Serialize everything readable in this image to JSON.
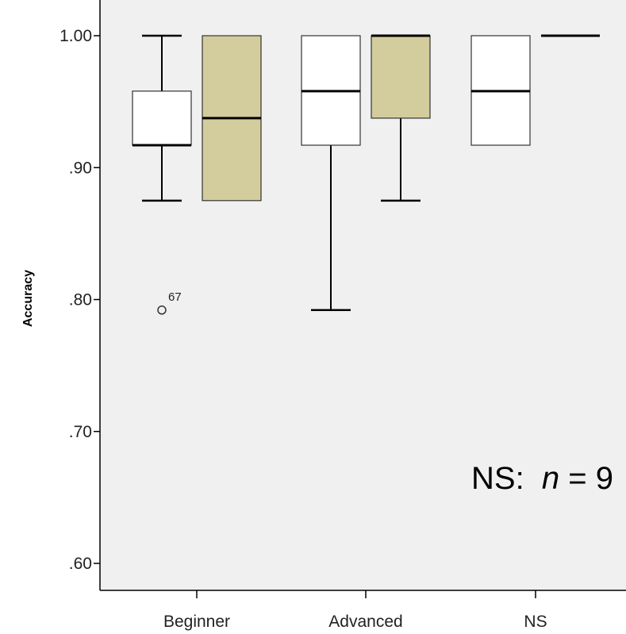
{
  "chart_data": {
    "type": "boxplot",
    "ylabel": "Accuracy",
    "ylim": [
      0.59,
      1.02
    ],
    "yticks": [
      {
        "value": 1.0,
        "label": "1.00"
      },
      {
        "value": 0.9,
        "label": ".90"
      },
      {
        "value": 0.8,
        "label": ".80"
      },
      {
        "value": 0.7,
        "label": ".70"
      },
      {
        "value": 0.6,
        "label": ".60"
      }
    ],
    "categories": [
      "Beginner",
      "Advanced",
      "NS"
    ],
    "grid": false,
    "colors": {
      "background": "#f0f0f0",
      "series_a": "#ffffff",
      "series_b": "#d3cc9c",
      "stroke": "#000000"
    },
    "boxes": [
      {
        "category": "Beginner",
        "color": "#ffffff",
        "whisker_low": 0.875,
        "q1": 0.917,
        "median": 0.917,
        "q3": 0.958,
        "whisker_high": 1.0,
        "outliers": [
          {
            "value": 0.792,
            "label": "67"
          }
        ]
      },
      {
        "category": "Beginner",
        "color": "#d3cc9c",
        "whisker_low": 0.875,
        "q1": 0.875,
        "median": 0.9375,
        "q3": 1.0,
        "whisker_high": 1.0,
        "outliers": []
      },
      {
        "category": "Advanced",
        "color": "#ffffff",
        "whisker_low": 0.792,
        "q1": 0.917,
        "median": 0.958,
        "q3": 1.0,
        "whisker_high": 1.0,
        "outliers": []
      },
      {
        "category": "Advanced",
        "color": "#d3cc9c",
        "whisker_low": 0.875,
        "q1": 0.9375,
        "median": 1.0,
        "q3": 1.0,
        "whisker_high": 1.0,
        "outliers": []
      },
      {
        "category": "NS",
        "color": "#ffffff",
        "whisker_low": 0.917,
        "q1": 0.917,
        "median": 0.958,
        "q3": 1.0,
        "whisker_high": 1.0,
        "outliers": []
      },
      {
        "category": "NS",
        "color": "#d3cc9c",
        "whisker_low": 1.0,
        "q1": 1.0,
        "median": 1.0,
        "q3": 1.0,
        "whisker_high": 1.0,
        "outliers": []
      }
    ],
    "annotation": {
      "prefix": "NS:  ",
      "italic": "n",
      "suffix": " = 9"
    }
  }
}
